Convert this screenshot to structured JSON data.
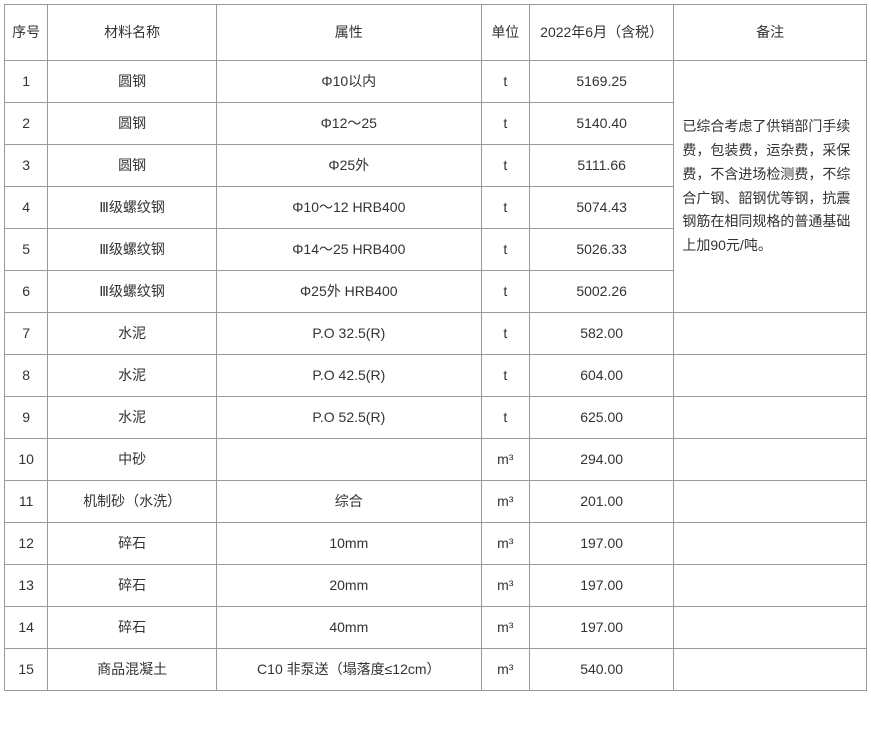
{
  "table": {
    "columns": [
      {
        "key": "seq",
        "label": "序号"
      },
      {
        "key": "name",
        "label": "材料名称"
      },
      {
        "key": "attr",
        "label": "属性"
      },
      {
        "key": "unit",
        "label": "单位"
      },
      {
        "key": "price",
        "label": "2022年6月（含税）"
      },
      {
        "key": "remark",
        "label": "备注"
      }
    ],
    "remark_text": "已综合考虑了供销部门手续费，包装费，运杂费，采保费，不含进场检测费，不综合广钢、韶钢优等钢，抗震钢筋在相同规格的普通基础上加90元/吨。",
    "rows": [
      {
        "seq": "1",
        "name": "圆钢",
        "attr": "Φ10以内",
        "unit": "t",
        "price": "5169.25"
      },
      {
        "seq": "2",
        "name": "圆钢",
        "attr": "Φ12～25",
        "unit": "t",
        "price": "5140.40"
      },
      {
        "seq": "3",
        "name": "圆钢",
        "attr": "Φ25外",
        "unit": "t",
        "price": "5111.66"
      },
      {
        "seq": "4",
        "name": "Ⅲ级螺纹钢",
        "attr": "Φ10～12 HRB400",
        "unit": "t",
        "price": "5074.43"
      },
      {
        "seq": "5",
        "name": "Ⅲ级螺纹钢",
        "attr": "Φ14～25 HRB400",
        "unit": "t",
        "price": "5026.33"
      },
      {
        "seq": "6",
        "name": "Ⅲ级螺纹钢",
        "attr": "Φ25外 HRB400",
        "unit": "t",
        "price": "5002.26"
      },
      {
        "seq": "7",
        "name": "水泥",
        "attr": "P.O 32.5(R)",
        "unit": "t",
        "price": "582.00"
      },
      {
        "seq": "8",
        "name": "水泥",
        "attr": "P.O 42.5(R)",
        "unit": "t",
        "price": "604.00"
      },
      {
        "seq": "9",
        "name": "水泥",
        "attr": "P.O 52.5(R)",
        "unit": "t",
        "price": "625.00"
      },
      {
        "seq": "10",
        "name": "中砂",
        "attr": "",
        "unit": "m³",
        "price": "294.00"
      },
      {
        "seq": "11",
        "name": "机制砂（水洗）",
        "attr": "综合",
        "unit": "m³",
        "price": "201.00"
      },
      {
        "seq": "12",
        "name": "碎石",
        "attr": "10mm",
        "unit": "m³",
        "price": "197.00"
      },
      {
        "seq": "13",
        "name": "碎石",
        "attr": "20mm",
        "unit": "m³",
        "price": "197.00"
      },
      {
        "seq": "14",
        "name": "碎石",
        "attr": "40mm",
        "unit": "m³",
        "price": "197.00"
      },
      {
        "seq": "15",
        "name": "商品混凝土",
        "attr": "C10 非泵送（塌落度≤12cm）",
        "unit": "m³",
        "price": "540.00"
      }
    ],
    "remark_rowspan": 6,
    "fontsize": 14,
    "border_color": "#999999",
    "text_color": "#333333",
    "background_color": "#ffffff"
  }
}
